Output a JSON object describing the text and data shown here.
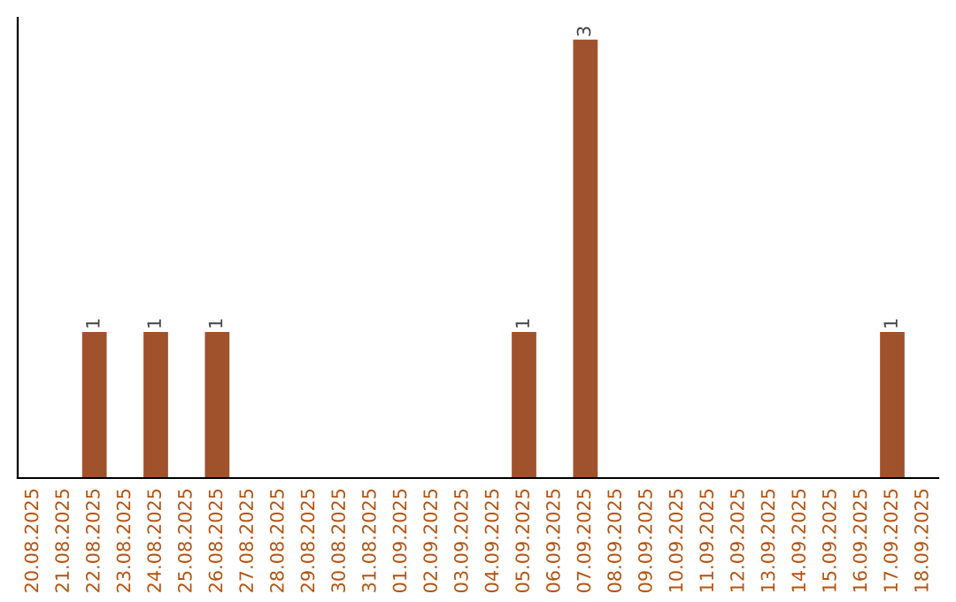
{
  "chart_data": {
    "type": "bar",
    "categories": [
      "20.08.2025",
      "21.08.2025",
      "22.08.2025",
      "23.08.2025",
      "24.08.2025",
      "25.08.2025",
      "26.08.2025",
      "27.08.2025",
      "28.08.2025",
      "29.08.2025",
      "30.08.2025",
      "31.08.2025",
      "01.09.2025",
      "02.09.2025",
      "03.09.2025",
      "04.09.2025",
      "05.09.2025",
      "06.09.2025",
      "07.09.2025",
      "08.09.2025",
      "09.09.2025",
      "10.09.2025",
      "11.09.2025",
      "12.09.2025",
      "13.09.2025",
      "14.09.2025",
      "15.09.2025",
      "16.09.2025",
      "17.09.2025",
      "18.09.2025"
    ],
    "values": [
      0,
      0,
      1,
      0,
      1,
      0,
      1,
      0,
      0,
      0,
      0,
      0,
      0,
      0,
      0,
      0,
      1,
      0,
      3,
      0,
      0,
      0,
      0,
      0,
      0,
      0,
      0,
      0,
      1,
      0
    ],
    "value_labels": [
      null,
      null,
      "1",
      null,
      "1",
      null,
      "1",
      null,
      null,
      null,
      null,
      null,
      null,
      null,
      null,
      null,
      "1",
      null,
      "3",
      null,
      null,
      null,
      null,
      null,
      null,
      null,
      null,
      null,
      "1",
      null
    ],
    "color": "#a0522d",
    "tick_labels": "x"
  }
}
